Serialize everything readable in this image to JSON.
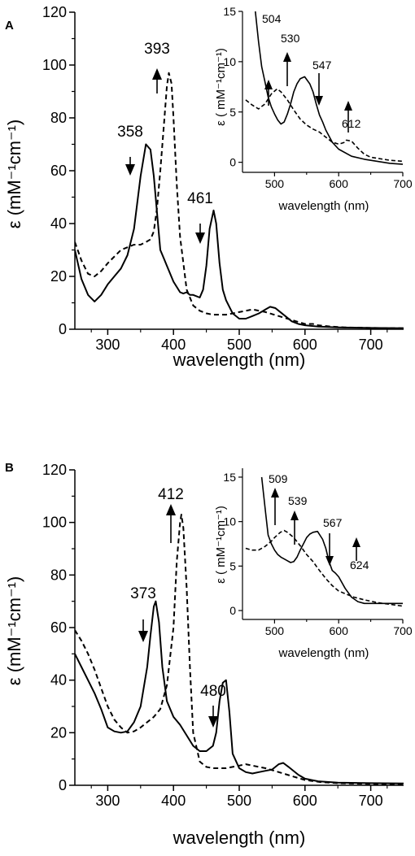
{
  "chart_data": [
    {
      "type": "line",
      "panel": "A",
      "xlabel": "wavelength (nm)",
      "ylabel": "ε (mM⁻¹cm⁻¹)",
      "xlim": [
        250,
        750
      ],
      "ylim": [
        0,
        120
      ],
      "xticks": [
        300,
        400,
        500,
        600,
        700
      ],
      "yticks": [
        0,
        20,
        40,
        60,
        80,
        100,
        120
      ],
      "grid": false,
      "series": [
        {
          "style": "solid",
          "x": [
            250,
            260,
            270,
            280,
            290,
            300,
            310,
            320,
            330,
            340,
            350,
            358,
            365,
            370,
            375,
            380,
            385,
            390,
            400,
            410,
            415,
            420,
            425,
            430,
            440,
            445,
            450,
            455,
            461,
            465,
            470,
            475,
            480,
            490,
            500,
            510,
            520,
            530,
            540,
            547,
            555,
            560,
            570,
            580,
            590,
            600,
            620,
            650,
            700,
            750
          ],
          "y": [
            30,
            19,
            13,
            10.5,
            13,
            17,
            20,
            23,
            28,
            38,
            58,
            70,
            68,
            58,
            44,
            30,
            27,
            24,
            18,
            14,
            13.5,
            14,
            13,
            13,
            12,
            15,
            24,
            38,
            45,
            40,
            25,
            15,
            11,
            6,
            4,
            4,
            5,
            6,
            7.5,
            8.5,
            8,
            7,
            5,
            3,
            2,
            1.5,
            1,
            0.7,
            0.5,
            0.4
          ]
        },
        {
          "style": "dashed",
          "x": [
            250,
            260,
            270,
            280,
            290,
            300,
            320,
            340,
            350,
            358,
            365,
            370,
            375,
            380,
            385,
            390,
            393,
            397,
            400,
            405,
            410,
            420,
            430,
            440,
            450,
            460,
            470,
            480,
            490,
            500,
            510,
            520,
            530,
            540,
            560,
            580,
            600,
            612,
            620,
            640,
            660,
            700,
            750
          ],
          "y": [
            33,
            26,
            21,
            20,
            22,
            25,
            30,
            32,
            32,
            33,
            34,
            37,
            46,
            60,
            76,
            92,
            97,
            93,
            80,
            55,
            35,
            15,
            9,
            7,
            6,
            5.5,
            5.5,
            5.5,
            6,
            6.5,
            7,
            7.5,
            7,
            6.5,
            5,
            3.5,
            2,
            2,
            1.5,
            1,
            0.7,
            0.5,
            0.4
          ]
        }
      ],
      "annotations": [
        {
          "text": "358",
          "x": 358,
          "arrow": "down"
        },
        {
          "text": "393",
          "x": 393,
          "arrow": "up"
        },
        {
          "text": "461",
          "x": 461,
          "arrow": "down"
        }
      ],
      "inset": {
        "xlabel": "wavelength (nm)",
        "ylabel": "ε ( mM⁻¹cm⁻¹)",
        "xlim": [
          450,
          700
        ],
        "ylim": [
          -1,
          15
        ],
        "xticks": [
          500,
          600,
          700
        ],
        "yticks": [
          0,
          5,
          10,
          15
        ],
        "series": [
          {
            "style": "solid",
            "x": [
              470,
              475,
              480,
              485,
              490,
              495,
              500,
              505,
              510,
              515,
              520,
              525,
              530,
              535,
              540,
              547,
              555,
              560,
              565,
              570,
              575,
              580,
              590,
              600,
              620,
              640,
              660,
              680,
              700
            ],
            "y": [
              15,
              12,
              9.5,
              8,
              6.5,
              5.5,
              4.8,
              4.2,
              3.8,
              4,
              4.8,
              5.8,
              7,
              7.8,
              8.3,
              8.5,
              7.8,
              7,
              5.8,
              4.7,
              4,
              3.2,
              2,
              1.3,
              0.6,
              0.3,
              0.1,
              -0.1,
              -0.2
            ]
          },
          {
            "style": "dashed",
            "x": [
              455,
              465,
              475,
              485,
              495,
              504,
              510,
              520,
              530,
              540,
              550,
              560,
              570,
              580,
              590,
              600,
              610,
              612,
              620,
              630,
              640,
              650,
              660,
              680,
              700
            ],
            "y": [
              6.2,
              5.7,
              5.3,
              5.8,
              6.8,
              7.3,
              7,
              6.2,
              5.2,
              4.3,
              3.7,
              3.3,
              3,
              2.5,
              2,
              1.8,
              2,
              2.2,
              2.1,
              1.4,
              0.8,
              0.5,
              0.4,
              0.2,
              0.1
            ]
          }
        ],
        "annotations": [
          {
            "text": "504",
            "x": 504,
            "arrow": "up"
          },
          {
            "text": "530",
            "x": 530,
            "arrow": "up"
          },
          {
            "text": "547",
            "x": 547,
            "arrow": "down"
          },
          {
            "text": "612",
            "x": 612,
            "arrow": "up"
          }
        ]
      }
    },
    {
      "type": "line",
      "panel": "B",
      "xlabel": "wavelength (nm)",
      "ylabel": "ε (mM⁻¹cm⁻¹)",
      "xlim": [
        250,
        750
      ],
      "ylim": [
        0,
        120
      ],
      "xticks": [
        300,
        400,
        500,
        600,
        700
      ],
      "yticks": [
        0,
        20,
        40,
        60,
        80,
        100,
        120
      ],
      "grid": false,
      "series": [
        {
          "style": "solid",
          "x": [
            250,
            260,
            270,
            280,
            290,
            300,
            310,
            320,
            330,
            340,
            350,
            360,
            365,
            370,
            373,
            378,
            383,
            390,
            400,
            410,
            420,
            430,
            440,
            450,
            460,
            465,
            470,
            475,
            480,
            485,
            490,
            500,
            510,
            520,
            530,
            540,
            550,
            560,
            567,
            575,
            580,
            590,
            600,
            620,
            650,
            700,
            750
          ],
          "y": [
            50,
            45,
            40,
            35,
            29,
            22,
            20.5,
            20,
            20.5,
            24,
            30,
            45,
            57,
            68,
            70,
            62,
            45,
            32,
            26,
            23,
            19,
            15,
            13,
            13,
            15,
            20,
            32,
            39,
            40,
            28,
            12,
            6.5,
            5,
            4.5,
            5,
            5.5,
            6,
            8,
            8.5,
            7,
            6,
            4,
            2.5,
            1.5,
            1,
            0.8,
            0.7
          ]
        },
        {
          "style": "dashed",
          "x": [
            250,
            260,
            270,
            280,
            290,
            300,
            310,
            320,
            330,
            340,
            350,
            360,
            370,
            380,
            390,
            400,
            405,
            410,
            412,
            415,
            420,
            425,
            430,
            440,
            450,
            460,
            470,
            480,
            490,
            500,
            510,
            520,
            530,
            540,
            560,
            580,
            600,
            624,
            650,
            700,
            750
          ],
          "y": [
            59,
            55,
            50,
            44,
            37,
            30,
            25,
            22,
            20,
            20.5,
            22,
            24,
            26,
            29,
            38,
            60,
            85,
            100,
            103,
            98,
            75,
            45,
            20,
            9,
            7,
            6.5,
            6.5,
            6.5,
            7,
            7.5,
            8,
            7.5,
            7,
            6.5,
            5,
            3.5,
            2,
            1.2,
            0.8,
            0.5,
            0.4
          ]
        }
      ],
      "annotations": [
        {
          "text": "373",
          "x": 373,
          "arrow": "down"
        },
        {
          "text": "412",
          "x": 412,
          "arrow": "up"
        },
        {
          "text": "480",
          "x": 480,
          "arrow": "down"
        }
      ],
      "inset": {
        "xlabel": "wavelength (nm)",
        "ylabel": "ε ( mM⁻¹cm⁻¹)",
        "xlim": [
          450,
          700
        ],
        "ylim": [
          -1,
          16
        ],
        "xticks": [
          500,
          600,
          700
        ],
        "yticks": [
          0,
          5,
          10,
          15
        ],
        "series": [
          {
            "style": "solid",
            "x": [
              480,
              483,
              486,
              490,
              495,
              500,
              505,
              510,
              515,
              520,
              525,
              530,
              535,
              540,
              545,
              550,
              555,
              560,
              567,
              575,
              580,
              585,
              590,
              595,
              600,
              610,
              620,
              630,
              640,
              660,
              680,
              700
            ],
            "y": [
              15,
              13,
              11,
              8.5,
              7.5,
              6.8,
              6.3,
              6,
              5.8,
              5.6,
              5.4,
              5.5,
              6,
              6.8,
              7.5,
              8.2,
              8.6,
              8.8,
              8.9,
              8,
              7,
              5.5,
              4.5,
              4.2,
              3.8,
              2.5,
              1.5,
              1,
              0.8,
              0.8,
              0.8,
              0.8
            ]
          },
          {
            "style": "dashed",
            "x": [
              455,
              465,
              475,
              485,
              495,
              500,
              509,
              515,
              520,
              530,
              540,
              550,
              560,
              570,
              580,
              590,
              600,
              610,
              624,
              640,
              660,
              680,
              700
            ],
            "y": [
              7,
              6.8,
              6.8,
              7.2,
              7.8,
              8.2,
              8.8,
              9,
              8.8,
              8.2,
              7.3,
              6.3,
              5.5,
              4.5,
              3.6,
              2.8,
              2.2,
              1.9,
              1.5,
              1.2,
              0.9,
              0.7,
              0.5
            ]
          }
        ],
        "annotations": [
          {
            "text": "509",
            "x": 509,
            "arrow": "up"
          },
          {
            "text": "539",
            "x": 539,
            "arrow": "up"
          },
          {
            "text": "567",
            "x": 567,
            "arrow": "down"
          },
          {
            "text": "624",
            "x": 624,
            "arrow": "up"
          }
        ]
      }
    }
  ]
}
